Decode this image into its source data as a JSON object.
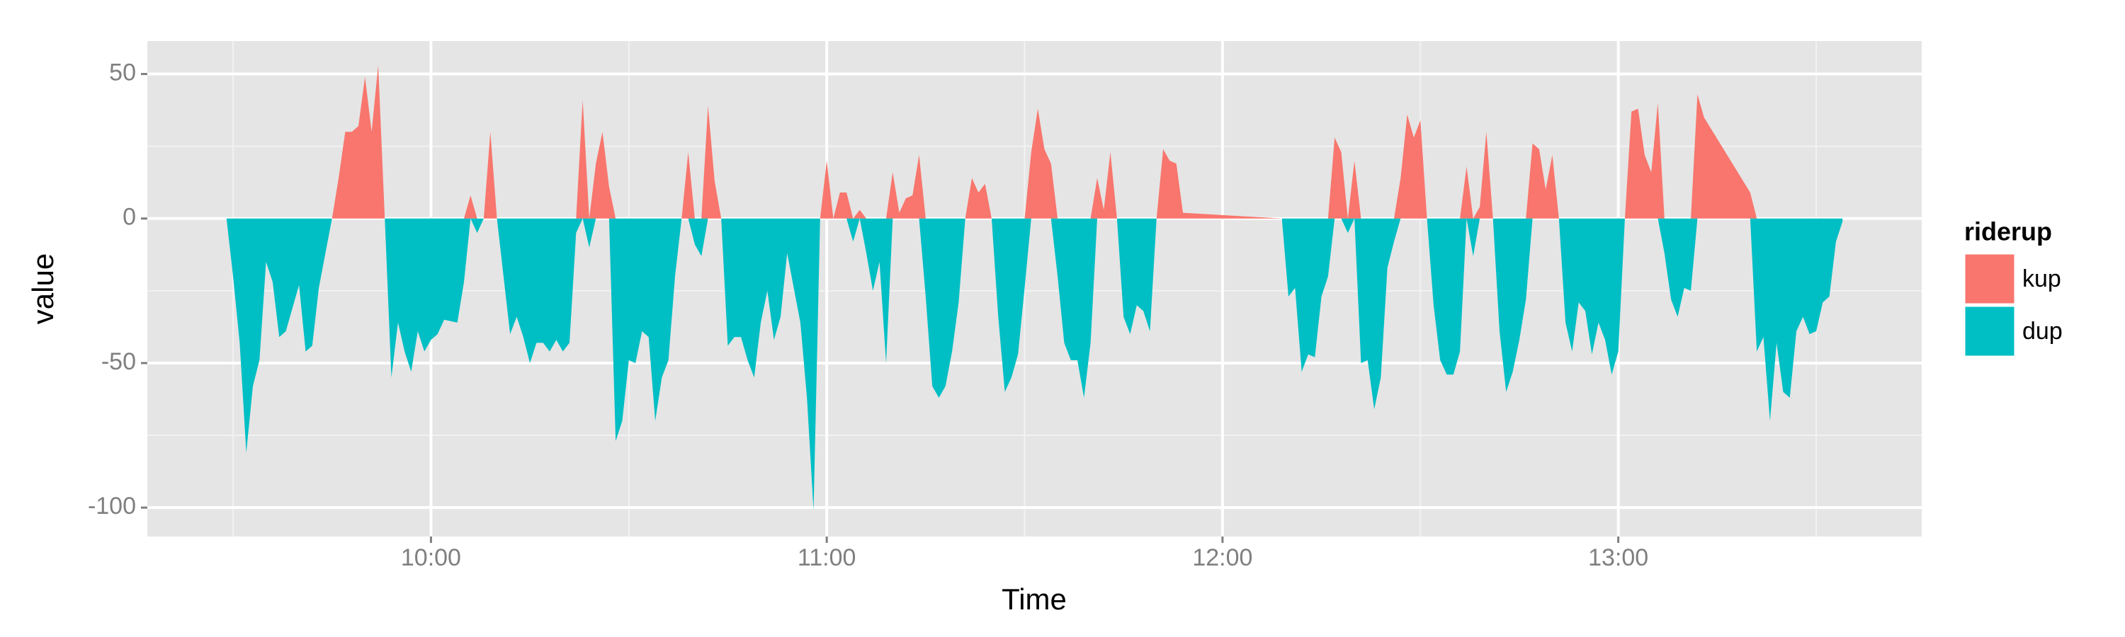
{
  "chart_data": {
    "type": "area",
    "x_label": "Time",
    "y_label": "value",
    "legend_title": "riderup",
    "legend": "right",
    "grid": true,
    "xlim": [
      "09:17",
      "13:46"
    ],
    "xticks": [
      "10:00",
      "11:00",
      "12:00",
      "13:00"
    ],
    "ylim": [
      -110,
      61.4
    ],
    "yticks": [
      -100,
      -50,
      0,
      50
    ],
    "x": [
      "09:29",
      "09:30",
      "09:31",
      "09:32",
      "09:33",
      "09:34",
      "09:35",
      "09:36",
      "09:37",
      "09:38",
      "09:39",
      "09:40",
      "09:41",
      "09:42",
      "09:43",
      "09:44",
      "09:45",
      "09:46",
      "09:47",
      "09:48",
      "09:49",
      "09:50",
      "09:51",
      "09:52",
      "09:53",
      "09:54",
      "09:55",
      "09:56",
      "09:57",
      "09:58",
      "09:59",
      "10:00",
      "10:01",
      "10:02",
      "10:04",
      "10:05",
      "10:06",
      "10:07",
      "10:08",
      "10:09",
      "10:10",
      "10:11",
      "10:12",
      "10:13",
      "10:14",
      "10:15",
      "10:16",
      "10:17",
      "10:18",
      "10:19",
      "10:20",
      "10:21",
      "10:22",
      "10:23",
      "10:24",
      "10:25",
      "10:26",
      "10:27",
      "10:28",
      "10:29",
      "10:30",
      "10:31",
      "10:32",
      "10:33",
      "10:34",
      "10:35",
      "10:36",
      "10:37",
      "10:38",
      "10:39",
      "10:40",
      "10:41",
      "10:42",
      "10:43",
      "10:44",
      "10:45",
      "10:46",
      "10:47",
      "10:48",
      "10:49",
      "10:50",
      "10:51",
      "10:52",
      "10:53",
      "10:54",
      "10:56",
      "10:57",
      "10:58",
      "10:59",
      "11:00",
      "11:01",
      "11:02",
      "11:03",
      "11:04",
      "11:05",
      "11:06",
      "11:07",
      "11:08",
      "11:09",
      "11:10",
      "11:11",
      "11:12",
      "11:13",
      "11:14",
      "11:15",
      "11:16",
      "11:17",
      "11:18",
      "11:19",
      "11:20",
      "11:21",
      "11:22",
      "11:23",
      "11:24",
      "11:25",
      "11:26",
      "11:27",
      "11:28",
      "11:29",
      "11:30",
      "11:31",
      "11:32",
      "11:33",
      "11:34",
      "11:35",
      "11:36",
      "11:37",
      "11:38",
      "11:39",
      "11:40",
      "11:41",
      "11:42",
      "11:43",
      "11:44",
      "11:45",
      "11:46",
      "11:47",
      "11:48",
      "11:49",
      "11:50",
      "11:51",
      "11:52",
      "11:53",
      "11:54",
      "12:09",
      "12:10",
      "12:11",
      "12:12",
      "12:13",
      "12:14",
      "12:15",
      "12:16",
      "12:17",
      "12:18",
      "12:19",
      "12:20",
      "12:21",
      "12:22",
      "12:23",
      "12:24",
      "12:25",
      "12:26",
      "12:27",
      "12:28",
      "12:29",
      "12:30",
      "12:31",
      "12:32",
      "12:33",
      "12:34",
      "12:35",
      "12:36",
      "12:37",
      "12:38",
      "12:39",
      "12:40",
      "12:41",
      "12:42",
      "12:43",
      "12:44",
      "12:45",
      "12:46",
      "12:47",
      "12:48",
      "12:49",
      "12:50",
      "12:51",
      "12:52",
      "12:53",
      "12:54",
      "12:55",
      "12:56",
      "12:57",
      "12:58",
      "12:59",
      "13:00",
      "13:01",
      "13:02",
      "13:03",
      "13:04",
      "13:05",
      "13:06",
      "13:07",
      "13:08",
      "13:09",
      "13:10",
      "13:11",
      "13:12",
      "13:13",
      "13:20",
      "13:21",
      "13:22",
      "13:23",
      "13:24",
      "13:25",
      "13:26",
      "13:27",
      "13:28",
      "13:29",
      "13:30",
      "13:31",
      "13:32",
      "13:33",
      "13:34"
    ],
    "series": [
      {
        "name": "kup",
        "color": "#F8766D",
        "values": [
          0,
          0,
          0,
          0,
          0,
          0,
          0,
          0,
          0,
          0,
          0,
          0,
          0,
          0,
          0,
          0,
          0,
          14,
          30,
          30,
          32,
          49,
          30,
          53,
          0,
          0,
          0,
          0,
          0,
          0,
          0,
          0,
          0,
          0,
          0,
          0,
          8,
          0,
          0,
          30,
          0,
          0,
          0,
          0,
          0,
          0,
          0,
          0,
          0,
          0,
          0,
          0,
          0,
          41,
          0,
          19,
          30,
          11,
          0,
          0,
          0,
          0,
          0,
          0,
          0,
          0,
          0,
          0,
          0,
          23,
          0,
          0,
          39,
          13,
          0,
          0,
          0,
          0,
          0,
          0,
          0,
          0,
          0,
          0,
          0,
          0,
          0,
          0,
          0,
          20,
          0,
          9,
          9,
          0,
          3,
          0,
          0,
          0,
          0,
          16,
          2,
          7,
          8,
          22,
          0,
          0,
          0,
          0,
          0,
          0,
          0,
          14,
          9,
          12,
          0,
          0,
          0,
          0,
          0,
          0,
          23,
          38,
          24,
          19,
          0,
          0,
          0,
          0,
          0,
          0,
          14,
          3,
          23,
          0,
          0,
          0,
          0,
          0,
          0,
          0,
          24,
          20,
          19,
          2,
          0,
          0,
          0,
          0,
          0,
          0,
          0,
          0,
          28,
          23,
          0,
          20,
          0,
          0,
          0,
          0,
          0,
          0,
          14,
          36,
          28,
          34,
          0,
          0,
          0,
          0,
          0,
          0,
          18,
          0,
          4,
          30,
          0,
          0,
          0,
          0,
          0,
          0,
          26,
          24,
          10,
          22,
          0,
          0,
          0,
          0,
          0,
          0,
          0,
          0,
          0,
          0,
          0,
          37,
          38,
          22,
          16,
          40,
          0,
          0,
          0,
          0,
          0,
          43,
          35,
          9,
          0,
          0,
          0,
          0,
          0,
          0,
          0,
          0,
          0,
          0,
          0,
          0,
          0,
          0
        ]
      },
      {
        "name": "dup",
        "color": "#00BFC4",
        "values": [
          0,
          -20,
          -43,
          -81,
          -58,
          -49,
          -15,
          -22,
          -41,
          -39,
          -31,
          -23,
          -46,
          -44,
          -24,
          -12,
          0,
          0,
          0,
          0,
          0,
          0,
          0,
          0,
          0,
          -55,
          -36,
          -46,
          -53,
          -39,
          -46,
          -42,
          -40,
          -35,
          -36,
          -22,
          0,
          -5,
          0,
          0,
          0,
          -20,
          -40,
          -34,
          -41,
          -50,
          -43,
          -43,
          -46,
          -42,
          -46,
          -43,
          -5,
          0,
          -10,
          0,
          0,
          0,
          -77,
          -70,
          -49,
          -50,
          -39,
          -41,
          -70,
          -55,
          -49,
          -20,
          0,
          0,
          -9,
          -13,
          0,
          0,
          0,
          -44,
          -41,
          -41,
          -49,
          -55,
          -36,
          -25,
          -42,
          -34,
          -12,
          -36,
          -62,
          -101,
          0,
          0,
          0,
          0,
          0,
          -8,
          0,
          -12,
          -25,
          -15,
          -50,
          0,
          0,
          0,
          0,
          0,
          -27,
          -58,
          -62,
          -58,
          -46,
          -29,
          0,
          0,
          0,
          0,
          0,
          -34,
          -60,
          -55,
          -47,
          -24,
          0,
          0,
          0,
          0,
          -20,
          -43,
          -49,
          -49,
          -62,
          -43,
          0,
          0,
          0,
          0,
          -34,
          -40,
          -30,
          -32,
          -39,
          0,
          0,
          0,
          0,
          0,
          0,
          -27,
          -24,
          -53,
          -47,
          -48,
          -27,
          -20,
          0,
          0,
          -5,
          0,
          -50,
          -49,
          -66,
          -55,
          -17,
          -8,
          0,
          0,
          0,
          0,
          0,
          -30,
          -49,
          -54,
          -54,
          -46,
          0,
          -13,
          0,
          0,
          0,
          -39,
          -60,
          -53,
          -42,
          -28,
          0,
          0,
          0,
          0,
          0,
          -36,
          -46,
          -29,
          -32,
          -47,
          -36,
          -42,
          -54,
          -46,
          0,
          0,
          0,
          0,
          0,
          0,
          -12,
          -28,
          -34,
          -24,
          -25,
          0,
          0,
          0,
          -46,
          -41,
          -70,
          -43,
          -60,
          -62,
          -39,
          -34,
          -40,
          -39,
          -29,
          -27,
          -8,
          -1
        ]
      }
    ]
  }
}
